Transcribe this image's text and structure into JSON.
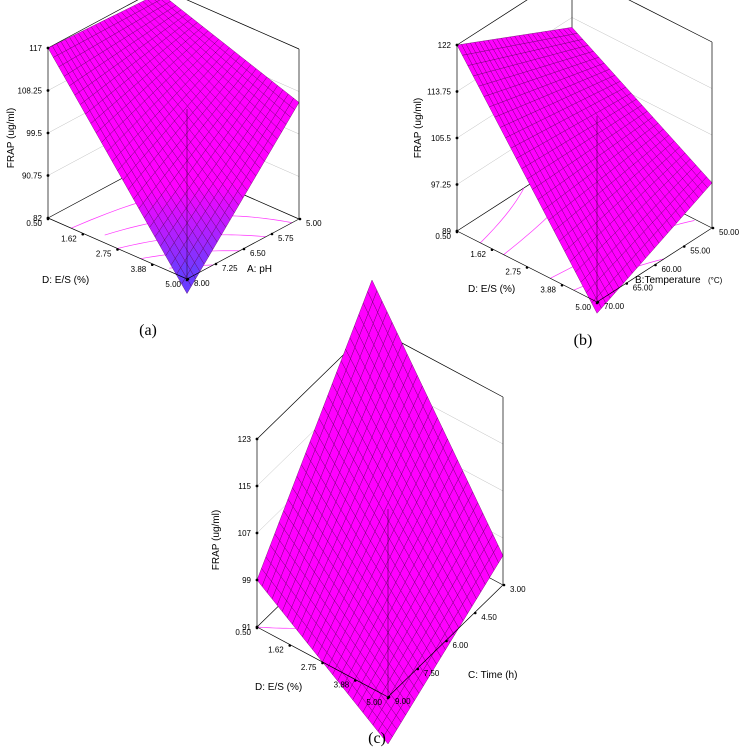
{
  "chart_data": [
    {
      "type": "surface3d",
      "panel_label": "(a)",
      "zlabel": "FRAP (ug/ml)",
      "xlabel": "D: E/S (%)",
      "ylabel": "A: pH",
      "zunit": "",
      "x_ticks": [
        "0.50",
        "1.62",
        "2.75",
        "3.88",
        "5.00"
      ],
      "y_ticks": [
        "8.00",
        "7.25",
        "6.50",
        "5.75",
        "5.00"
      ],
      "z_ticks": [
        "82",
        "90.75",
        "99.5",
        "108.25",
        "117"
      ],
      "x_range": [
        0.5,
        5.0
      ],
      "y_range": [
        8.0,
        5.0
      ],
      "z_range": [
        82,
        117
      ],
      "corners": {
        "x0y0": 117,
        "x0y1": 116,
        "x1y0": 79,
        "x1y1": 106
      },
      "surface_color": "#ff00ff",
      "low_color": "#6a3cff"
    },
    {
      "type": "surface3d",
      "panel_label": "(b)",
      "zlabel": "FRAP (ug/ml)",
      "xlabel": "D: E/S (%)",
      "ylabel": "B:Temperature",
      "zunit": "(°C)",
      "x_ticks": [
        "0.50",
        "1.62",
        "2.75",
        "3.88",
        "5.00"
      ],
      "y_ticks": [
        "70.00",
        "65.00",
        "60.00",
        "55.00",
        "50.00"
      ],
      "z_ticks": [
        "89",
        "97.25",
        "105.5",
        "113.75",
        "122"
      ],
      "x_range": [
        0.5,
        5.0
      ],
      "y_range": [
        70.0,
        50.0
      ],
      "z_range": [
        89,
        122
      ],
      "corners": {
        "x0y0": 122,
        "x0y1": 112,
        "x1y0": 87,
        "x1y1": 97
      },
      "surface_color": "#ff00ff",
      "low_color": "#ff00ff"
    },
    {
      "type": "surface3d",
      "panel_label": "(c)",
      "zlabel": "FRAP (ug/ml)",
      "xlabel": "D: E/S (%)",
      "ylabel": "C: Time (h)",
      "zunit": "",
      "x_ticks": [
        "0.50",
        "1.62",
        "2.75",
        "3.88",
        "5.00"
      ],
      "y_ticks": [
        "9.00",
        "7.50",
        "6.00",
        "4.50",
        "3.00"
      ],
      "z_ticks": [
        "91",
        "99",
        "107",
        "115",
        "123"
      ],
      "x_range": [
        0.5,
        5.0
      ],
      "y_range": [
        9.0,
        3.0
      ],
      "z_range": [
        91,
        123
      ],
      "corners": {
        "x0y0": 99,
        "x0y1": 131,
        "x1y0": 83,
        "x1y1": 96
      },
      "surface_color": "#ff00ff",
      "low_color": "#ff00ff"
    }
  ]
}
